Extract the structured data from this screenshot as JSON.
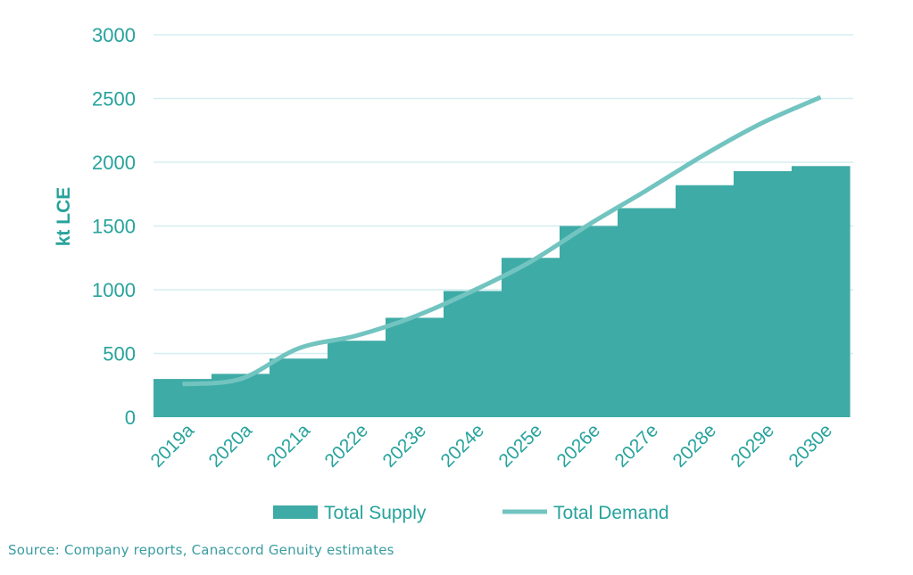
{
  "colors": {
    "supply": "#3FABA6",
    "demand": "#72C4C0",
    "text": "#27A39C",
    "grid": "#D3EEF0",
    "source": "#3A9CA0"
  },
  "chart_data": {
    "type": "bar",
    "categories": [
      "2019a",
      "2020a",
      "2021a",
      "2022e",
      "2023e",
      "2024e",
      "2025e",
      "2026e",
      "2027e",
      "2028e",
      "2029e",
      "2030e"
    ],
    "series": [
      {
        "name": "Total Supply",
        "type": "bar",
        "values": [
          300,
          340,
          460,
          600,
          780,
          990,
          1250,
          1500,
          1640,
          1820,
          1930,
          1970
        ]
      },
      {
        "name": "Total Demand",
        "type": "line",
        "values": [
          260,
          300,
          540,
          640,
          790,
          990,
          1220,
          1510,
          1780,
          2060,
          2310,
          2510
        ]
      }
    ],
    "ylabel": "kt  LCE",
    "ylim": [
      0,
      3000
    ],
    "yticks": [
      0,
      500,
      1000,
      1500,
      2000,
      2500,
      3000
    ],
    "grid": true,
    "legend_position": "bottom"
  },
  "legend": {
    "supply_label": "Total Supply",
    "demand_label": "Total Demand"
  },
  "source": "Source: Company reports, Canaccord Genuity estimates"
}
